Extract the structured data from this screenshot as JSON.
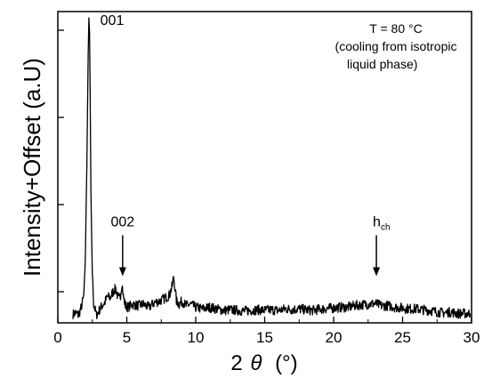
{
  "chart_data": {
    "type": "line",
    "title": "",
    "xlabel_main": "2",
    "xlabel_theta": "θ",
    "xlabel_unit": "(°)",
    "ylabel": "Intensity+Offset  (a.U)",
    "xlim": [
      0,
      30
    ],
    "ylim": [
      0,
      100
    ],
    "x_ticks": [
      0,
      5,
      10,
      15,
      20,
      25,
      30
    ],
    "y_ticks": [
      10,
      38,
      66,
      94
    ],
    "y_tick_labels_visible": false,
    "grid": false,
    "legend": "none",
    "annotation": {
      "lines": [
        "T = 80 °C",
        "(cooling from isotropic",
        "liquid phase)"
      ]
    },
    "peak_labels": [
      {
        "text": "001",
        "x": 2.3,
        "y": 98,
        "arrow": false
      },
      {
        "text": "002",
        "x": 4.7,
        "y": 15,
        "arrow": true
      },
      {
        "text": "h",
        "sub": "ch",
        "x": 23.1,
        "y": 15,
        "arrow": true
      }
    ],
    "series": [
      {
        "color": "#000000",
        "x": [
          1.1,
          1.3,
          1.5,
          1.7,
          1.9,
          2.0,
          2.1,
          2.2,
          2.25,
          2.3,
          2.35,
          2.4,
          2.5,
          2.6,
          2.8,
          3.0,
          3.2,
          3.4,
          3.6,
          3.8,
          4.0,
          4.2,
          4.4,
          4.55,
          4.65,
          4.75,
          4.9,
          5.1,
          5.4,
          5.8,
          6.2,
          6.6,
          7.0,
          7.4,
          7.8,
          8.1,
          8.3,
          8.4,
          8.5,
          8.6,
          8.8,
          9.0,
          9.3,
          9.6,
          10.0,
          10.5,
          11,
          11.5,
          12,
          12.5,
          13,
          13.5,
          14,
          14.5,
          15,
          15.5,
          16,
          16.5,
          17,
          17.5,
          18,
          18.5,
          19,
          19.5,
          20,
          20.5,
          21,
          21.5,
          22,
          22.5,
          23,
          23.5,
          24,
          24.5,
          25,
          25.5,
          26,
          26.5,
          27,
          27.5,
          28,
          28.5,
          29,
          29.5,
          29.9
        ],
        "y": [
          2.8,
          3.2,
          2.5,
          5.0,
          9.0,
          22.0,
          50.0,
          86.0,
          98.0,
          93.0,
          72.0,
          42.0,
          16.0,
          6.0,
          2.5,
          4.0,
          5.5,
          6.5,
          8.5,
          8.0,
          10.0,
          11.0,
          7.5,
          9.0,
          13.0,
          8.5,
          5.5,
          5.0,
          6.0,
          5.5,
          6.0,
          5.0,
          6.5,
          7.0,
          8.0,
          9.0,
          12.0,
          15.0,
          11.0,
          7.0,
          6.0,
          7.0,
          5.5,
          6.0,
          5.0,
          4.5,
          5.0,
          4.5,
          4.0,
          4.2,
          4.0,
          3.8,
          4.0,
          4.2,
          4.0,
          4.2,
          4.0,
          4.5,
          4.3,
          4.5,
          4.2,
          4.0,
          4.4,
          4.6,
          4.8,
          5.0,
          5.0,
          5.5,
          5.8,
          6.0,
          6.2,
          5.5,
          5.5,
          5.0,
          4.8,
          4.5,
          4.5,
          4.2,
          4.0,
          3.5,
          3.2,
          3.5,
          3.0,
          3.0,
          3.0
        ]
      }
    ]
  }
}
